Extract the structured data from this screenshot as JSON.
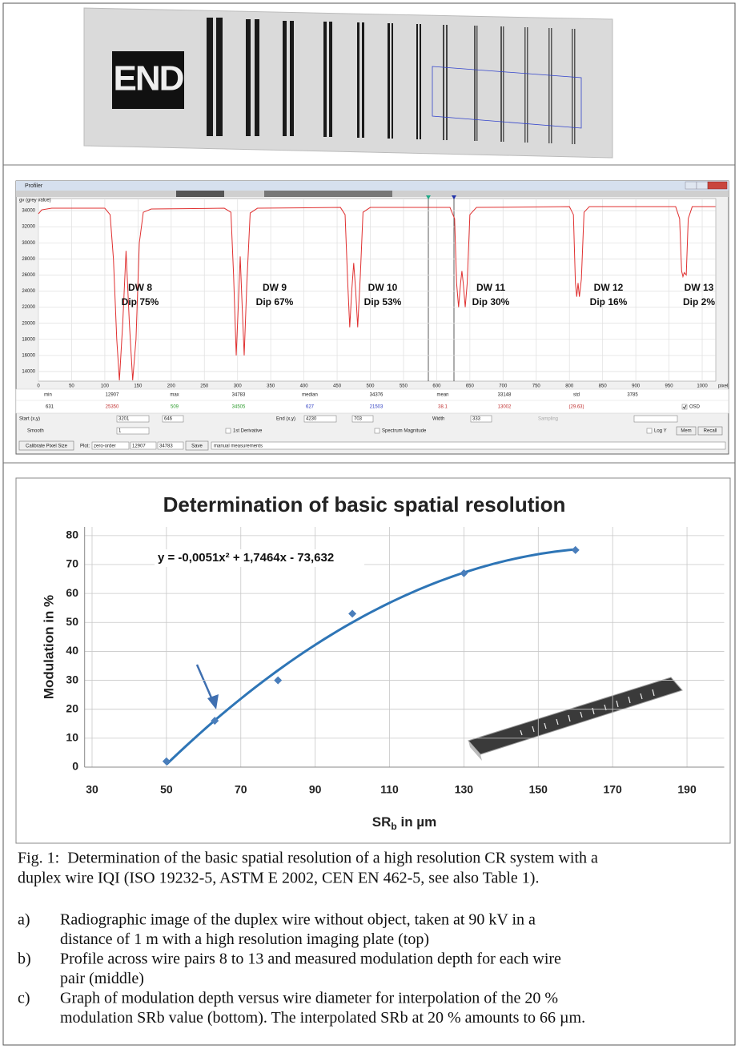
{
  "top_image": {
    "label": "END"
  },
  "profiler": {
    "window_title": "Profiler",
    "stats": {
      "labels": [
        "min",
        "max",
        "median",
        "mean",
        "std"
      ],
      "values": [
        12907,
        34783,
        34376,
        33148,
        3785
      ],
      "row2": [
        631,
        25350,
        509,
        34505,
        627,
        21503,
        38.1,
        13002,
        "(29.63)"
      ],
      "osd": "OSD"
    },
    "controls": {
      "start_label": "Start (x,y)",
      "start": [
        3201,
        646
      ],
      "end_label": "End (x,y)",
      "end": [
        4230,
        703
      ],
      "width_label": "Width",
      "width": 333,
      "sampling": "Sampling",
      "smooth_label": "Smooth",
      "smooth": 1,
      "derivative": "1st Derivative",
      "spectrum": "Spectrum Magnitude",
      "log_y": "Log Y",
      "mem": "Mem",
      "recall": "Recall",
      "calibrate": "Calibrate Pixel Size",
      "plot_label": "Plot:",
      "plot_mode": "zero-order",
      "plot_range": [
        12907,
        34783
      ],
      "save": "Save",
      "measurements": "manual measurements"
    }
  },
  "chart_data": [
    {
      "type": "line",
      "y_label": "gv (grey value)",
      "x_label": "pixel",
      "x": [
        0,
        5,
        20,
        100,
        108,
        113,
        118,
        122,
        127,
        132,
        137,
        142,
        147,
        152,
        158,
        170,
        280,
        290,
        294,
        298,
        301,
        304,
        307,
        310,
        314,
        319,
        330,
        455,
        462,
        466,
        469,
        472,
        475,
        478,
        481,
        485,
        489,
        500,
        620,
        627,
        630,
        633,
        636,
        638,
        640,
        643,
        646,
        650,
        660,
        800,
        806,
        809,
        811,
        813,
        815,
        818,
        822,
        830,
        960,
        966,
        969,
        971,
        973,
        976,
        979,
        985,
        1020
      ],
      "series": [
        {
          "color": "#e03030",
          "values": [
            33600,
            34100,
            34300,
            34300,
            33500,
            28000,
            18000,
            12900,
            20000,
            29000,
            20000,
            12900,
            18000,
            30000,
            33800,
            34200,
            34300,
            33800,
            26000,
            16000,
            22000,
            28300,
            22000,
            16000,
            25000,
            33700,
            34300,
            34400,
            33500,
            25000,
            19500,
            24000,
            27500,
            24000,
            19500,
            26000,
            33800,
            34400,
            34400,
            33000,
            25000,
            22000,
            25000,
            26500,
            25000,
            22000,
            25000,
            33500,
            34400,
            34500,
            33500,
            25000,
            23300,
            25000,
            23300,
            25500,
            33800,
            34500,
            34500,
            33000,
            26500,
            25800,
            26300,
            26000,
            33000,
            34500,
            34500
          ]
        }
      ],
      "xlim": [
        0,
        1020
      ],
      "ylim": [
        12800,
        35500
      ],
      "xticks": [
        0,
        50,
        100,
        150,
        200,
        250,
        300,
        350,
        400,
        450,
        500,
        550,
        600,
        650,
        700,
        750,
        800,
        850,
        900,
        950,
        1000
      ],
      "yticks": [
        14000,
        16000,
        18000,
        20000,
        22000,
        24000,
        26000,
        28000,
        30000,
        32000,
        34000
      ],
      "grid": true,
      "annotations": [
        [
          "DW 8",
          "Dip 75%"
        ],
        [
          "DW 9",
          "Dip 67%"
        ],
        [
          "DW 10",
          "Dip 53%"
        ],
        [
          "DW 11",
          "Dip 30%"
        ],
        [
          "DW 12",
          "Dip 16%"
        ],
        [
          "DW 13",
          "Dip 2%"
        ]
      ]
    },
    {
      "type": "scatter",
      "title": "Determination of basic spatial resolution",
      "y_label": "Modulation in %",
      "x_label": {
        "main": "SR",
        "sub": "b",
        "rest": " in µm"
      },
      "x": [
        50,
        63,
        80,
        100,
        130,
        160
      ],
      "values": [
        2,
        16,
        30,
        53,
        67,
        75
      ],
      "color": "#4a7ebb",
      "xlim": [
        28,
        200
      ],
      "ylim": [
        0,
        83
      ],
      "xticks": [
        30,
        50,
        70,
        90,
        110,
        130,
        150,
        170,
        190
      ],
      "yticks": [
        0,
        10,
        20,
        30,
        40,
        50,
        60,
        70,
        80
      ],
      "grid": true,
      "trendline": {
        "label": "y = -0,0051x² + 1,7464x - 73,632",
        "coefficients": [
          -0.0051,
          1.7464,
          -73.632
        ],
        "color": "#2e75b6"
      }
    }
  ],
  "caption": {
    "figure": [
      "Fig. 1:  Determination of the basic spatial resolution of a high resolution CR system with a",
      "duplex wire IQI (ISO 19232-5, ASTM E 2002, CEN EN 462-5, see also Table 1)."
    ],
    "items": [
      {
        "label": "a)",
        "lines": [
          "Radiographic image of the duplex wire without object, taken at 90 kV in a",
          "distance of 1 m with a high resolution imaging plate (top)"
        ]
      },
      {
        "label": "b)",
        "lines": [
          "Profile across wire pairs 8 to 13 and measured modulation depth for each wire",
          "pair (middle)"
        ]
      },
      {
        "label": "c)",
        "lines": [
          "Graph of modulation depth versus wire diameter for interpolation of the 20 %",
          "modulation SRb value (bottom). The interpolated SRb at 20 % amounts to 66 µm."
        ]
      }
    ]
  }
}
